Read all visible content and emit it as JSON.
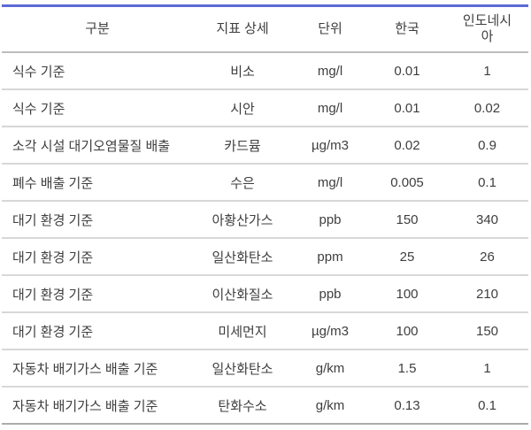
{
  "table": {
    "accent_color": "#5c6bd5",
    "text_color": "#3e3e3e",
    "columns": [
      {
        "key": "category",
        "label": "구분"
      },
      {
        "key": "indicator",
        "label": "지표 상세"
      },
      {
        "key": "unit",
        "label": "단위"
      },
      {
        "key": "korea",
        "label": "한국"
      },
      {
        "key": "indonesia",
        "label": "인도네시아"
      }
    ],
    "rows": [
      {
        "category": "식수 기준",
        "indicator": "비소",
        "unit": "mg/l",
        "korea": "0.01",
        "indonesia": "1"
      },
      {
        "category": "식수 기준",
        "indicator": "시안",
        "unit": "mg/l",
        "korea": "0.01",
        "indonesia": "0.02"
      },
      {
        "category": "소각 시설 대기오염물질 배출",
        "indicator": "카드뮴",
        "unit": "µg/m3",
        "korea": "0.02",
        "indonesia": "0.9"
      },
      {
        "category": "폐수 배출 기준",
        "indicator": "수은",
        "unit": "mg/l",
        "korea": "0.005",
        "indonesia": "0.1"
      },
      {
        "category": "대기 환경 기준",
        "indicator": "아황산가스",
        "unit": "ppb",
        "korea": "150",
        "indonesia": "340"
      },
      {
        "category": "대기 환경 기준",
        "indicator": "일산화탄소",
        "unit": "ppm",
        "korea": "25",
        "indonesia": "26"
      },
      {
        "category": "대기 환경 기준",
        "indicator": "이산화질소",
        "unit": "ppb",
        "korea": "100",
        "indonesia": "210"
      },
      {
        "category": "대기 환경 기준",
        "indicator": "미세먼지",
        "unit": "µg/m3",
        "korea": "100",
        "indonesia": "150"
      },
      {
        "category": "자동차 배기가스 배출 기준",
        "indicator": "일산화탄소",
        "unit": "g/km",
        "korea": "1.5",
        "indonesia": "1"
      },
      {
        "category": "자동차 배기가스 배출 기준",
        "indicator": "탄화수소",
        "unit": "g/km",
        "korea": "0.13",
        "indonesia": "0.1"
      }
    ]
  }
}
